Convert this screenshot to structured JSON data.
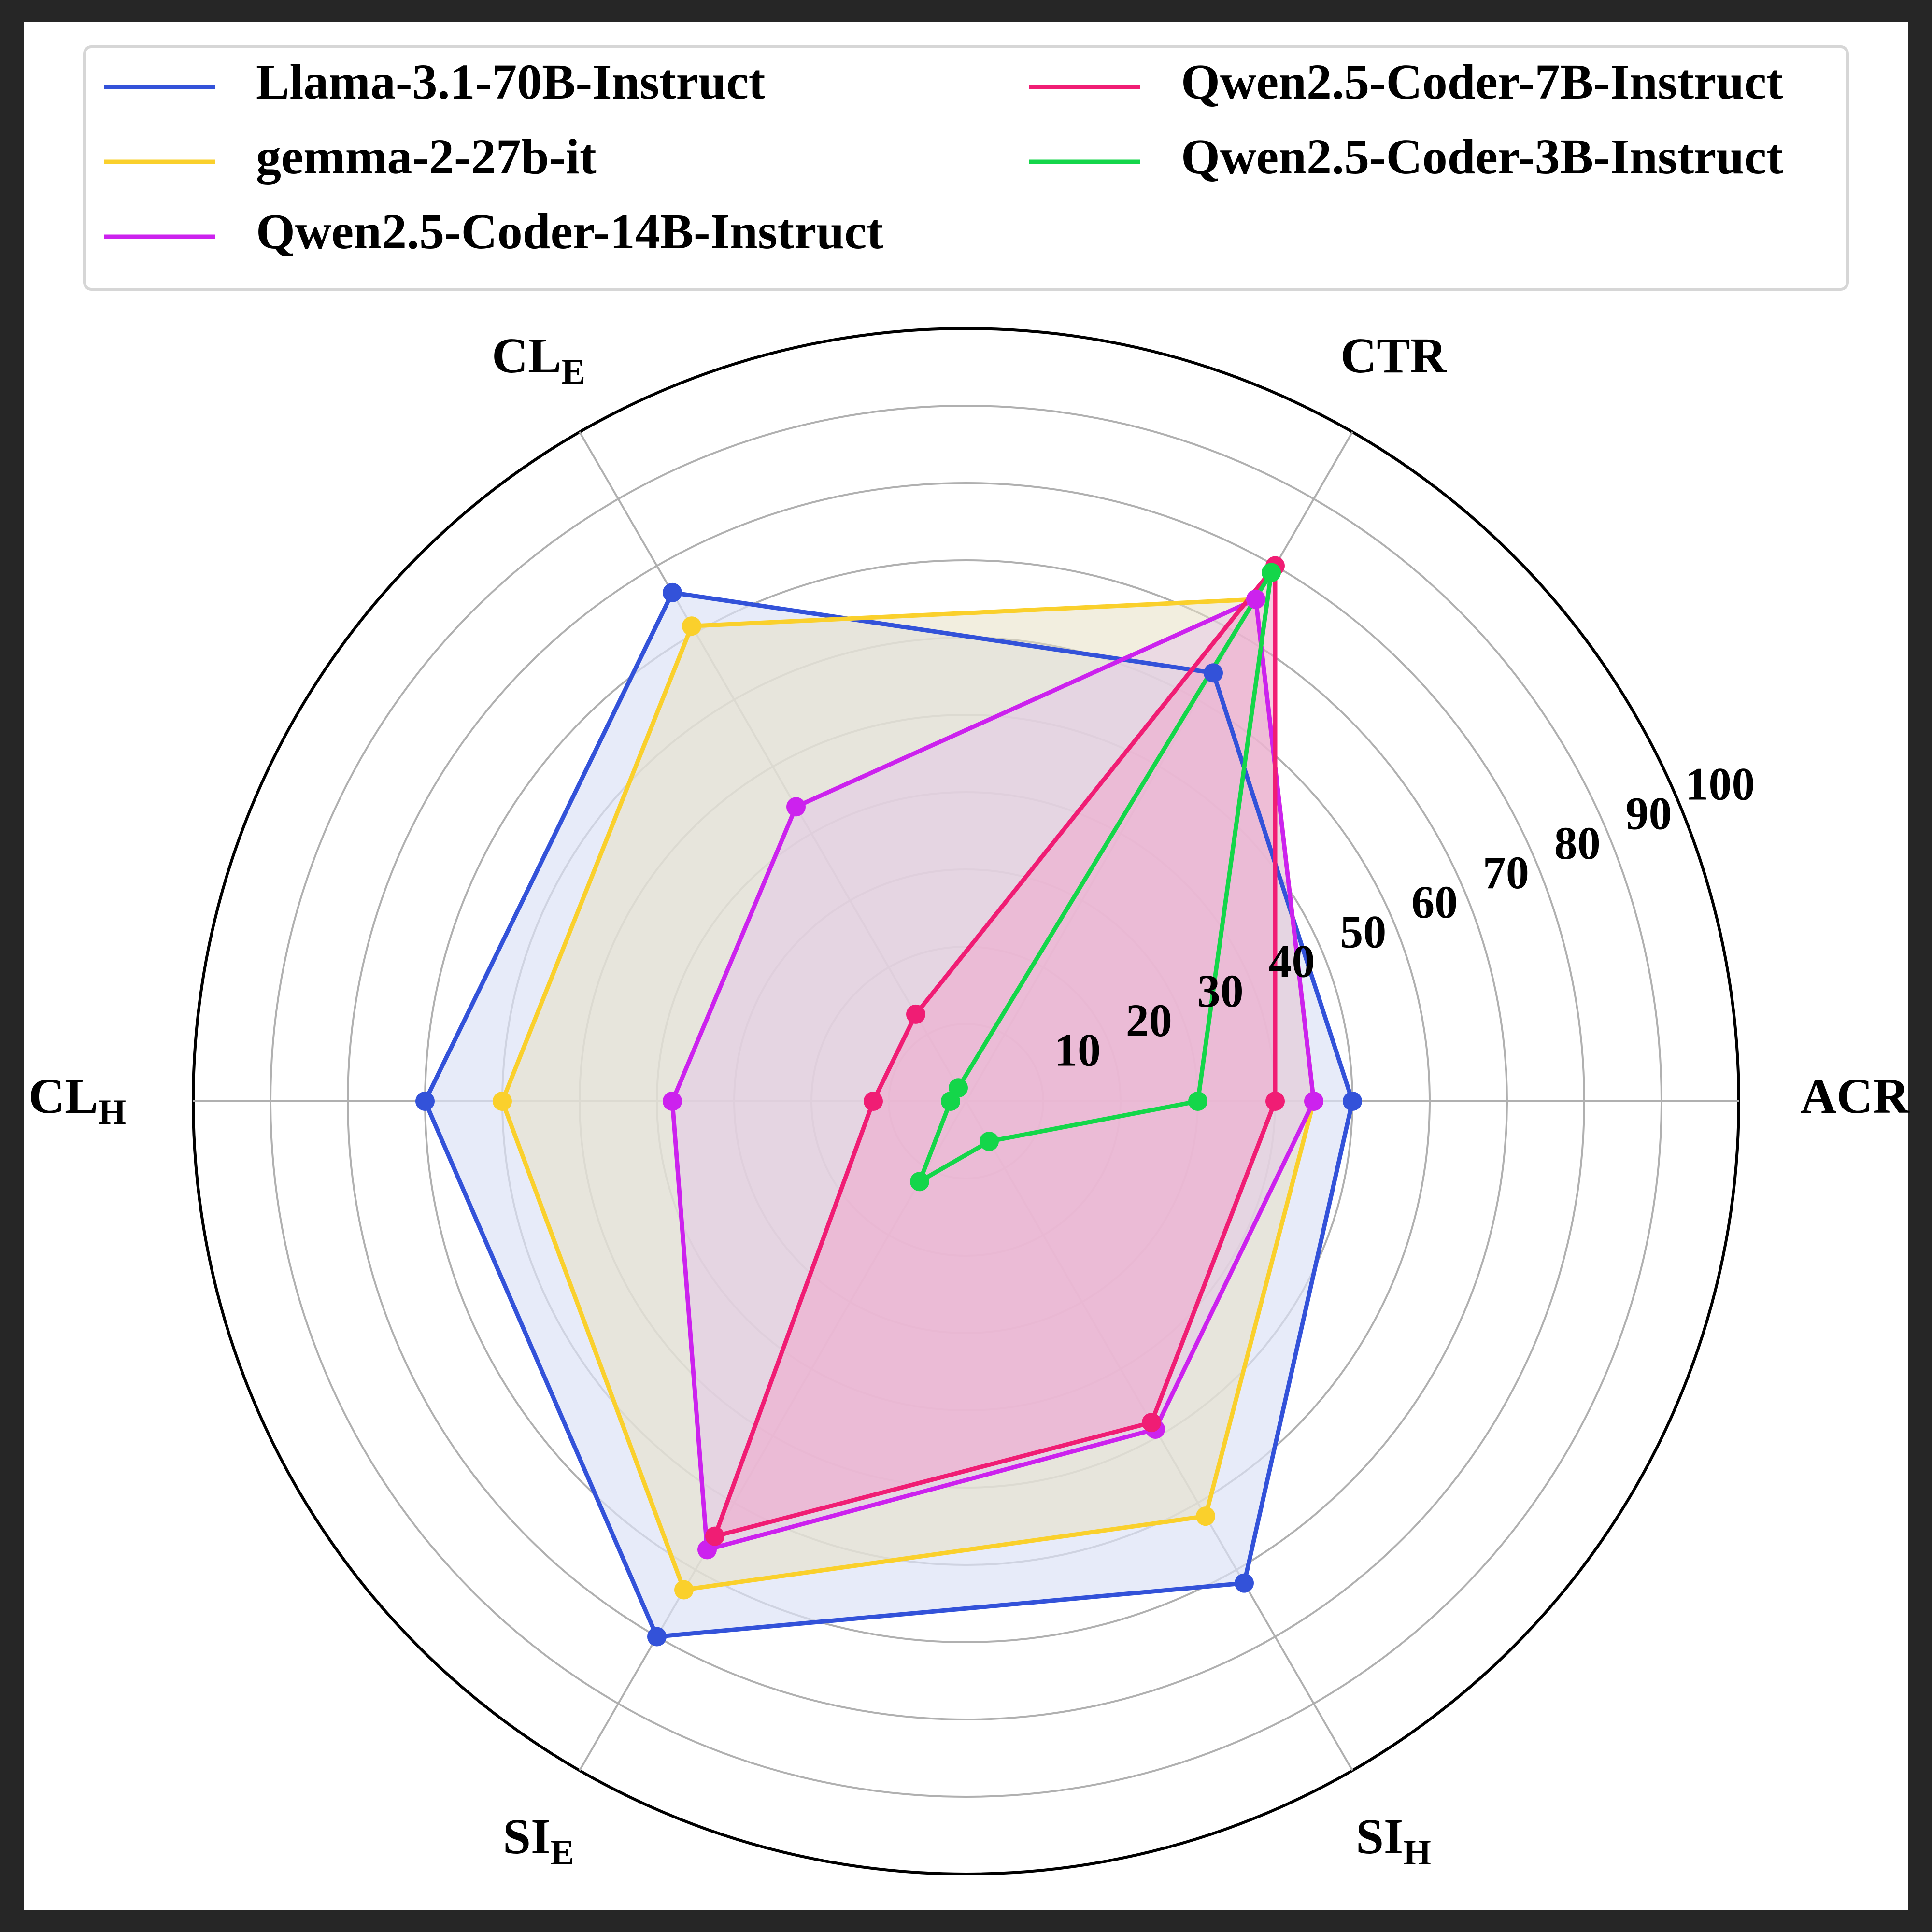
{
  "chart_data": {
    "type": "radar",
    "axes": [
      {
        "key": "ACR",
        "label": "ACR",
        "sub": ""
      },
      {
        "key": "CTR",
        "label": "CTR",
        "sub": ""
      },
      {
        "key": "CLE",
        "label": "CL",
        "sub": "E"
      },
      {
        "key": "CLH",
        "label": "CL",
        "sub": "H"
      },
      {
        "key": "SIE",
        "label": "SI",
        "sub": "E"
      },
      {
        "key": "SIH",
        "label": "SI",
        "sub": "H"
      }
    ],
    "rlim": [
      0,
      100
    ],
    "radial_ticks": [
      10,
      20,
      30,
      40,
      50,
      60,
      70,
      80,
      90,
      100
    ],
    "grid": true,
    "legend_position": "top",
    "series": [
      {
        "name": "Llama-3.1-70B-Instruct",
        "color": "#3352d9",
        "fill": "#dde3f7",
        "fill_opacity": 0.7,
        "values": [
          50,
          64,
          76,
          70,
          80,
          72
        ]
      },
      {
        "name": "gemma-2-27b-it",
        "color": "#fad02c",
        "fill": "#e8e0c4",
        "fill_opacity": 0.55,
        "values": [
          45,
          75,
          71,
          60,
          73,
          62
        ]
      },
      {
        "name": "Qwen2.5-Coder-14B-Instruct",
        "color": "#cc22ee",
        "fill": "#e3c2e8",
        "fill_opacity": 0.45,
        "values": [
          45,
          75,
          44,
          38,
          67,
          49
        ]
      },
      {
        "name": "Qwen2.5-Coder-7B-Instruct",
        "color": "#f01d74",
        "fill": "#f0a6cc",
        "fill_opacity": 0.55,
        "values": [
          40,
          80,
          13,
          12,
          65,
          48
        ]
      },
      {
        "name": "Qwen2.5-Coder-3B-Instruct",
        "color": "#14d64a",
        "fill": "#f0a6cc",
        "fill_opacity": 0.0,
        "values": [
          30,
          79,
          2,
          2,
          12,
          6
        ]
      }
    ]
  }
}
